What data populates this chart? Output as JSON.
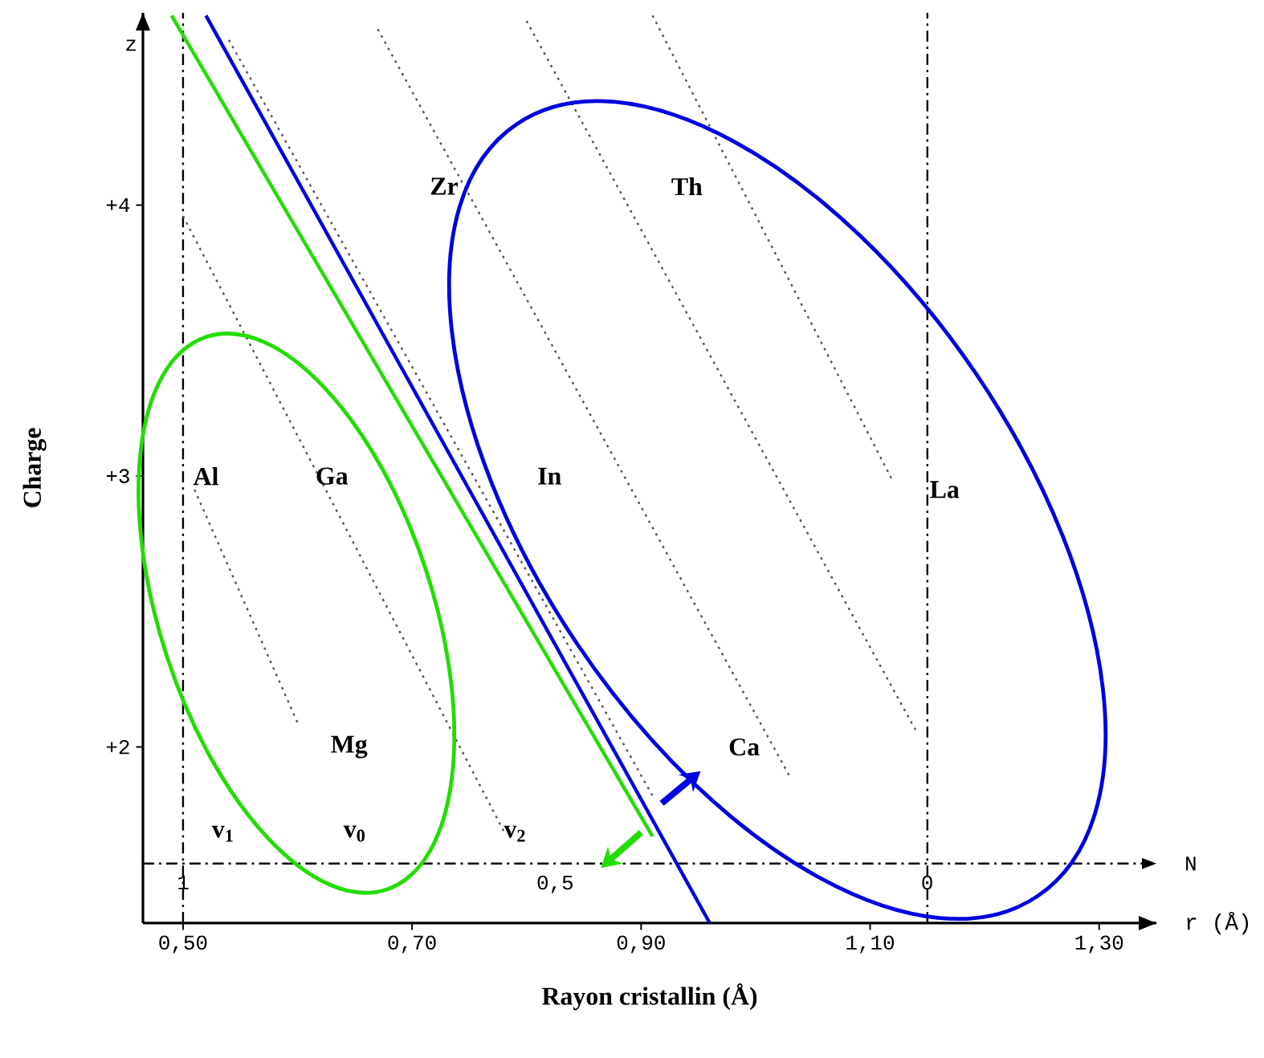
{
  "chart_data": {
    "type": "line",
    "xlabel": "Rayon cristallin (Å)",
    "ylabel": "Charge",
    "x2label": "N",
    "xlim": [
      0.465,
      1.35
    ],
    "xticks": [
      {
        "value": 0.5,
        "label": "0,50"
      },
      {
        "value": 0.7,
        "label": "0,70"
      },
      {
        "value": 0.9,
        "label": "0,90"
      },
      {
        "value": 1.1,
        "label": "1,10"
      },
      {
        "value": 1.3,
        "label": "1,30"
      }
    ],
    "ylim": [
      1.35,
      4.71
    ],
    "yticks": [
      {
        "value": 2,
        "label": "+2"
      },
      {
        "value": 3,
        "label": "+3"
      },
      {
        "value": 4,
        "label": "+4"
      }
    ],
    "x2lim": [
      1.054,
      -0.308
    ],
    "x2ticks": [
      1,
      {
        "value": 0.5,
        "label": "0,5"
      },
      0
    ],
    "ref_lines": [
      {
        "axis": "y",
        "value": 1.57,
        "line_style": "dashed"
      },
      {
        "axis": "x",
        "value": 0.5,
        "line_style": "dashed"
      },
      {
        "axis": "x",
        "value": 1.15,
        "line_style": "dashed"
      }
    ],
    "series": [
      {
        "color": "#555555",
        "line_style": "dotted",
        "x": [
          0.5,
          0.78
        ],
        "values": [
          3.96,
          1.69
        ]
      },
      {
        "color": "#555555",
        "line_style": "dotted",
        "x": [
          0.67,
          1.03
        ],
        "values": [
          4.65,
          1.89
        ]
      },
      {
        "color": "#555555",
        "line_style": "dotted",
        "x": [
          0.54,
          0.91
        ],
        "values": [
          4.61,
          1.82
        ]
      },
      {
        "color": "#555555",
        "line_style": "dotted",
        "x": [
          0.51,
          0.6
        ],
        "values": [
          2.95,
          2.09
        ]
      },
      {
        "color": "#555555",
        "line_style": "dotted",
        "x": [
          0.8,
          1.14
        ],
        "values": [
          4.68,
          2.06
        ]
      },
      {
        "color": "#555555",
        "line_style": "dotted",
        "x": [
          0.91,
          1.12
        ],
        "values": [
          4.7,
          2.98
        ]
      },
      {
        "color": "#22dd00",
        "line_style": "solid",
        "x": [
          0.49,
          0.91
        ],
        "values": [
          4.7,
          1.67
        ]
      },
      {
        "color": "#0000e0",
        "line_style": "solid",
        "x": [
          0.52,
          0.96
        ],
        "values": [
          4.7,
          1.35
        ]
      }
    ],
    "annotations": [
      "r (Å)",
      "z",
      "Al",
      "Ga",
      "In",
      "La",
      "Zr",
      "Th",
      "Mg",
      "Ca",
      "v$_{1}$",
      "v$_{0}$",
      "v$_{2}$"
    ]
  }
}
